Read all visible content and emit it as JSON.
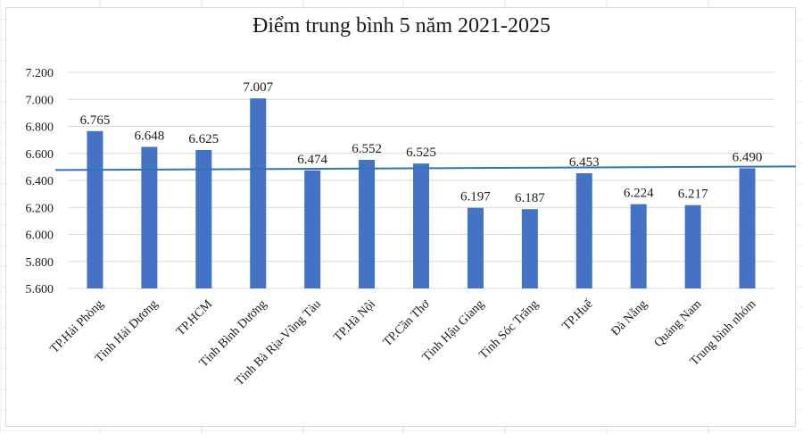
{
  "chart_data": {
    "type": "bar",
    "title": "Điểm trung bình 5 năm 2021-2025",
    "categories": [
      "TP.Hải Phòng",
      "Tỉnh Hải Dương",
      "TP.HCM",
      "Tỉnh Bình Dương",
      "Tỉnh Bà Rịa-Vũng Tàu",
      "TP.Hà Nội",
      "TP.Cần Thơ",
      "Tỉnh Hậu Giang",
      "Tỉnh Sóc Trăng",
      "TP.Huế",
      "Đà Nẵng",
      "Quảng Nam",
      "Trung bình nhóm"
    ],
    "values": [
      6.765,
      6.648,
      6.625,
      7.007,
      6.474,
      6.552,
      6.525,
      6.197,
      6.187,
      6.453,
      6.224,
      6.217,
      6.49
    ],
    "value_labels": [
      "6.765",
      "6.648",
      "6.625",
      "7.007",
      "6.474",
      "6.552",
      "6.525",
      "6.197",
      "6.187",
      "6.453",
      "6.224",
      "6.217",
      "6.490"
    ],
    "reference_line": 6.49,
    "ylim": [
      5.6,
      7.2
    ],
    "yticks": [
      5.6,
      5.8,
      6.0,
      6.2,
      6.4,
      6.6,
      6.8,
      7.0,
      7.2
    ],
    "ytick_labels": [
      "5.600",
      "5.800",
      "6.000",
      "6.200",
      "6.400",
      "6.600",
      "6.800",
      "7.000",
      "7.200"
    ],
    "grid": true,
    "colors": {
      "bar": "#4472c4",
      "reference_line": "#2e75b6",
      "grid": "#d9d9d9"
    }
  }
}
